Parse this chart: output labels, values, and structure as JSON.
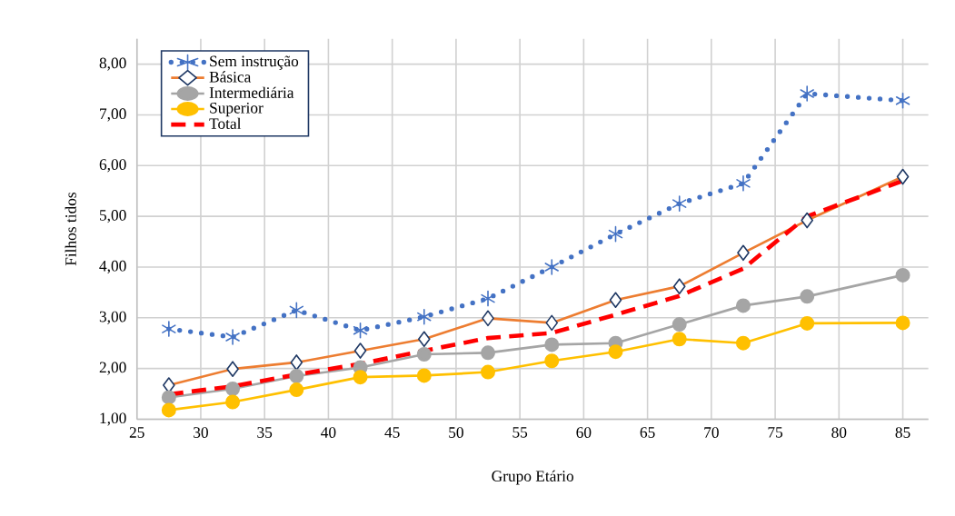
{
  "chart_data": {
    "type": "line",
    "xlabel": "Grupo Etário",
    "ylabel": "Filhos tidos",
    "x": [
      27.5,
      32.5,
      37.5,
      42.5,
      47.5,
      52.5,
      57.5,
      62.5,
      67.5,
      72.5,
      77.5,
      85
    ],
    "series": [
      {
        "name": "Sem instrução",
        "color": "#4472c4",
        "marker": "cross",
        "line_style": "dotted",
        "values": [
          2.78,
          2.62,
          3.15,
          2.75,
          3.02,
          3.38,
          4.0,
          4.65,
          5.25,
          5.65,
          7.42,
          7.28
        ]
      },
      {
        "name": "Básica",
        "color": "#ed7d31",
        "marker": "diamond",
        "line_style": "solid",
        "values": [
          1.67,
          1.99,
          2.12,
          2.35,
          2.58,
          2.99,
          2.9,
          3.35,
          3.62,
          4.28,
          4.92,
          5.78
        ]
      },
      {
        "name": "Intermediária",
        "color": "#a5a5a5",
        "marker": "circle",
        "line_style": "solid",
        "values": [
          1.43,
          1.6,
          1.85,
          2.02,
          2.28,
          2.31,
          2.47,
          2.5,
          2.87,
          3.24,
          3.42,
          3.84
        ]
      },
      {
        "name": "Superior",
        "color": "#ffc000",
        "marker": "circle",
        "line_style": "solid",
        "values": [
          1.18,
          1.34,
          1.58,
          1.83,
          1.86,
          1.93,
          2.15,
          2.33,
          2.58,
          2.5,
          2.89,
          2.9
        ]
      },
      {
        "name": "Total",
        "color": "#ff0000",
        "marker": "none",
        "line_style": "dashed",
        "values": [
          1.49,
          1.65,
          1.88,
          2.09,
          2.35,
          2.6,
          2.7,
          3.06,
          3.43,
          3.97,
          5.0,
          5.7
        ]
      }
    ],
    "xlim": [
      25,
      87
    ],
    "xticks": [
      25,
      30,
      35,
      40,
      45,
      50,
      55,
      60,
      65,
      70,
      75,
      80,
      85
    ],
    "ylim": [
      1,
      8.5
    ],
    "yticks": [
      {
        "value": 1,
        "label": "1,00"
      },
      {
        "value": 2,
        "label": "2,00"
      },
      {
        "value": 3,
        "label": "3,00"
      },
      {
        "value": 4,
        "label": "4,00"
      },
      {
        "value": 5,
        "label": "5,00"
      },
      {
        "value": 6,
        "label": "6,00"
      },
      {
        "value": 7,
        "label": "7,00"
      },
      {
        "value": 8,
        "label": "8,00"
      }
    ],
    "grid": true,
    "legend": "top left"
  }
}
